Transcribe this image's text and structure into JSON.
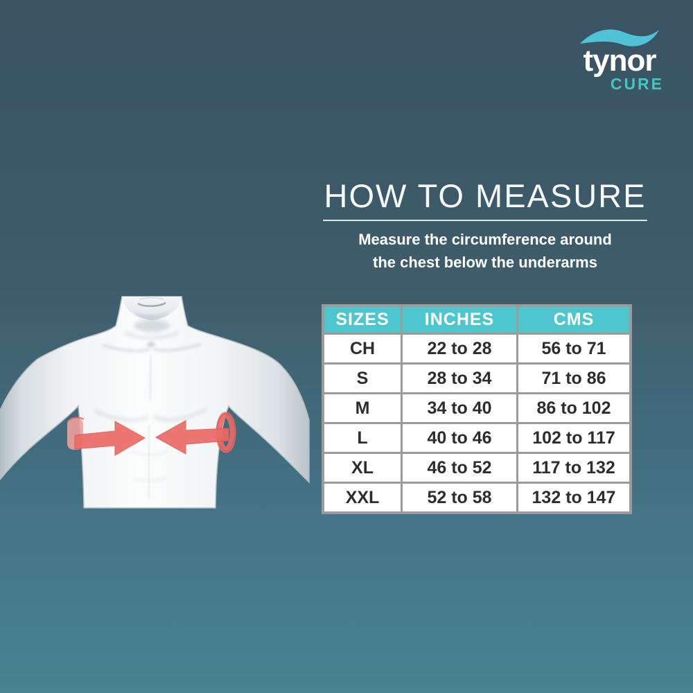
{
  "logo": {
    "brand": "tynor",
    "sub_brand": "CURE"
  },
  "header": {
    "title": "HOW TO MEASURE",
    "subtitle_line1": "Measure the circumference around",
    "subtitle_line2": "the chest below the underarms"
  },
  "illustration": {
    "icon": "torso-chest-measurement-arrows-icon",
    "description_visible": ""
  },
  "chart_data": {
    "type": "table",
    "title": "HOW TO MEASURE",
    "columns": [
      "SIZES",
      "INCHES",
      "CMS"
    ],
    "rows": [
      [
        "CH",
        "22 to 28",
        "56 to 71"
      ],
      [
        "S",
        "28 to 34",
        "71 to 86"
      ],
      [
        "M",
        "34 to 40",
        "86 to 102"
      ],
      [
        "L",
        "40 to 46",
        "102 to 117"
      ],
      [
        "XL",
        "46 to 52",
        "117 to 132"
      ],
      [
        "XXL",
        "52 to 58",
        "132 to 147"
      ]
    ]
  },
  "colors": {
    "background_top": "#3a5362",
    "background_bottom": "#48838f",
    "accent_teal_header": "#4ec6cd",
    "logo_wave_teal": "#4fc3d5",
    "logo_sub_teal": "#45c6c5",
    "arrow_red": "#ec6b66",
    "table_border_gray": "#9b9b9b",
    "cell_text": "#2d2d2d",
    "white": "#ffffff"
  }
}
